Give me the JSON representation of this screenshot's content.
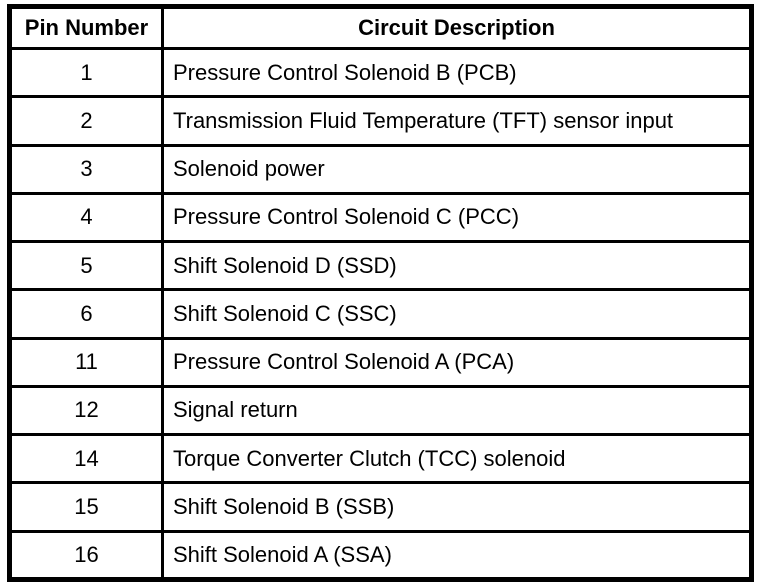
{
  "table": {
    "headers": [
      "Pin Number",
      "Circuit Description"
    ],
    "rows": [
      {
        "pin": "1",
        "description": "Pressure Control Solenoid B (PCB)"
      },
      {
        "pin": "2",
        "description": "Transmission Fluid Temperature (TFT) sensor input"
      },
      {
        "pin": "3",
        "description": "Solenoid power"
      },
      {
        "pin": "4",
        "description": "Pressure Control Solenoid C (PCC)"
      },
      {
        "pin": "5",
        "description": "Shift Solenoid D (SSD)"
      },
      {
        "pin": "6",
        "description": "Shift Solenoid C (SSC)"
      },
      {
        "pin": "11",
        "description": "Pressure Control Solenoid A (PCA)"
      },
      {
        "pin": "12",
        "description": "Signal return"
      },
      {
        "pin": "14",
        "description": "Torque Converter Clutch (TCC) solenoid"
      },
      {
        "pin": "15",
        "description": "Shift Solenoid B (SSB)"
      },
      {
        "pin": "16",
        "description": "Shift Solenoid A (SSA)"
      }
    ],
    "colors": {
      "border": "#000000",
      "background": "#ffffff",
      "text": "#000000"
    }
  }
}
